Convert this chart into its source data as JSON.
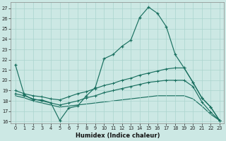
{
  "xlabel": "Humidex (Indice chaleur)",
  "background_color": "#cce8e4",
  "grid_color": "#aad4ce",
  "line_color": "#1a7060",
  "xlim": [
    -0.5,
    23.5
  ],
  "ylim": [
    15.8,
    27.6
  ],
  "yticks": [
    16,
    17,
    18,
    19,
    20,
    21,
    22,
    23,
    24,
    25,
    26,
    27
  ],
  "xticks": [
    0,
    1,
    2,
    3,
    4,
    5,
    6,
    7,
    8,
    9,
    10,
    11,
    12,
    13,
    14,
    15,
    16,
    17,
    18,
    19,
    20,
    21,
    22,
    23
  ],
  "line1_x": [
    0,
    1,
    2,
    3,
    4,
    5,
    6,
    7,
    8,
    9,
    10,
    11,
    12,
    13,
    14,
    15,
    16,
    17,
    18,
    19,
    20,
    21,
    22,
    23
  ],
  "line1_y": [
    21.5,
    18.6,
    18.1,
    18.1,
    17.8,
    16.1,
    17.3,
    17.5,
    18.5,
    19.3,
    22.1,
    22.5,
    23.3,
    23.9,
    26.1,
    27.1,
    26.5,
    25.2,
    22.5,
    21.2,
    19.8,
    18.3,
    17.4,
    16.1
  ],
  "line2_x": [
    0,
    1,
    2,
    3,
    4,
    5,
    6,
    7,
    8,
    9,
    10,
    11,
    12,
    13,
    14,
    15,
    16,
    17,
    18,
    19,
    20,
    21,
    22,
    23
  ],
  "line2_y": [
    19.0,
    18.7,
    18.5,
    18.4,
    18.2,
    18.1,
    18.4,
    18.7,
    18.9,
    19.2,
    19.5,
    19.7,
    20.0,
    20.2,
    20.5,
    20.7,
    20.9,
    21.1,
    21.2,
    21.2,
    19.8,
    18.3,
    17.4,
    16.1
  ],
  "line3_x": [
    0,
    1,
    2,
    3,
    4,
    5,
    6,
    7,
    8,
    9,
    10,
    11,
    12,
    13,
    14,
    15,
    16,
    17,
    18,
    19,
    20,
    21,
    22,
    23
  ],
  "line3_y": [
    18.7,
    18.5,
    18.2,
    18.0,
    17.8,
    17.6,
    17.8,
    18.0,
    18.3,
    18.5,
    18.8,
    19.0,
    19.2,
    19.4,
    19.6,
    19.8,
    19.9,
    20.0,
    20.0,
    20.0,
    19.4,
    17.9,
    16.9,
    16.1
  ],
  "line4_x": [
    0,
    1,
    2,
    3,
    4,
    5,
    6,
    7,
    8,
    9,
    10,
    11,
    12,
    13,
    14,
    15,
    16,
    17,
    18,
    19,
    20,
    21,
    22,
    23
  ],
  "line4_y": [
    18.5,
    18.3,
    18.0,
    17.8,
    17.6,
    17.4,
    17.5,
    17.6,
    17.7,
    17.8,
    17.9,
    18.0,
    18.1,
    18.2,
    18.3,
    18.4,
    18.5,
    18.5,
    18.5,
    18.5,
    18.2,
    17.5,
    16.7,
    16.1
  ]
}
